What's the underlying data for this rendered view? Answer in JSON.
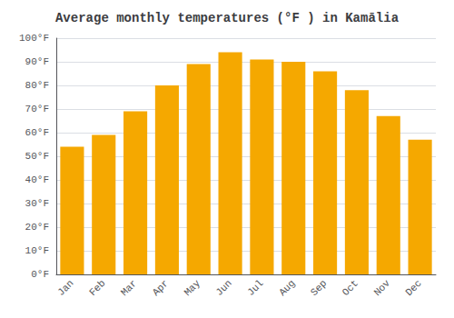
{
  "chart_data": {
    "type": "bar",
    "title": "Average monthly temperatures (°F ) in Kamālia",
    "categories": [
      "Jan",
      "Feb",
      "Mar",
      "Apr",
      "May",
      "Jun",
      "Jul",
      "Aug",
      "Sep",
      "Oct",
      "Nov",
      "Dec"
    ],
    "values": [
      54,
      59,
      69,
      80,
      89,
      94,
      91,
      90,
      86,
      78,
      67,
      57
    ],
    "color": "#F5A800",
    "ylim": [
      0,
      100
    ],
    "yticks": [
      {
        "value": 0,
        "label": "0°F"
      },
      {
        "value": 10,
        "label": "10°F"
      },
      {
        "value": 20,
        "label": "20°F"
      },
      {
        "value": 30,
        "label": "30°F"
      },
      {
        "value": 40,
        "label": "40°F"
      },
      {
        "value": 50,
        "label": "50°F"
      },
      {
        "value": 60,
        "label": "60°F"
      },
      {
        "value": 70,
        "label": "70°F"
      },
      {
        "value": 80,
        "label": "80°F"
      },
      {
        "value": 90,
        "label": "90°F"
      },
      {
        "value": 100,
        "label": "100°F"
      }
    ],
    "grid": true
  }
}
